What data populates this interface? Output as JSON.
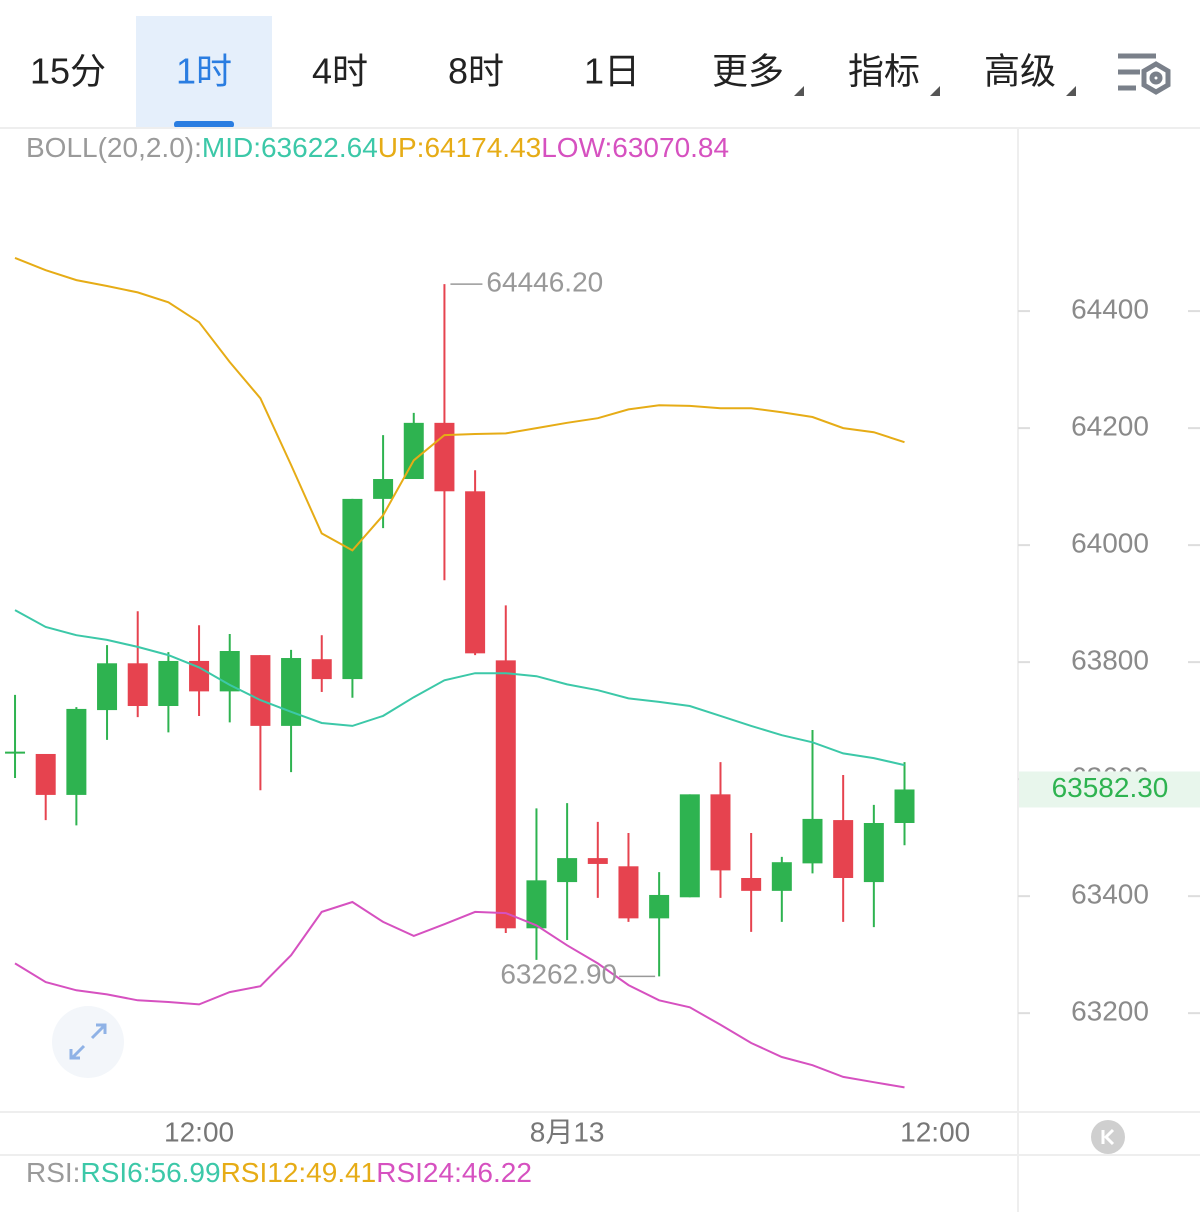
{
  "tabs": [
    {
      "label": "15分",
      "dropdown": false
    },
    {
      "label": "1时",
      "dropdown": false
    },
    {
      "label": "4时",
      "dropdown": false
    },
    {
      "label": "8时",
      "dropdown": false
    },
    {
      "label": "1日",
      "dropdown": false
    },
    {
      "label": "更多",
      "dropdown": true
    },
    {
      "label": "指标",
      "dropdown": true
    },
    {
      "label": "高级",
      "dropdown": true
    }
  ],
  "selected_tab": 1,
  "chart_data": {
    "type": "candlestick",
    "indicator_header": [
      {
        "text": "BOLL(20,2.0):",
        "color": "#9a9a9a"
      },
      {
        "text": "MID:63622.64",
        "color": "#3cc8a8"
      },
      {
        "text": "UP:64174.43",
        "color": "#e6ac16"
      },
      {
        "text": "LOW:63070.84",
        "color": "#d651c0"
      }
    ],
    "open": [
      63644,
      63643,
      63573,
      63718,
      63798,
      63725,
      63802,
      63750,
      63812,
      63691,
      63805,
      63771,
      64079,
      64113,
      64209,
      64092,
      63803,
      63345,
      63424,
      63465,
      63451,
      63362,
      63398,
      63574,
      63431,
      63409,
      63456,
      63530,
      63424,
      63525
    ],
    "high": [
      63744,
      63643,
      63723,
      63829,
      63887,
      63817,
      63863,
      63848,
      63812,
      63821,
      63846,
      64079,
      64188,
      64226,
      64446.2,
      64128,
      63897,
      63550,
      63559,
      63527,
      63508,
      63441,
      63574,
      63629,
      63508,
      63467,
      63684,
      63607,
      63556,
      63629
    ],
    "low": [
      63602,
      63530,
      63521,
      63667,
      63706,
      63680,
      63708,
      63697,
      63581,
      63612,
      63749,
      63739,
      64029,
      64113,
      63940,
      63812,
      63337,
      63291,
      63325,
      63397,
      63356,
      63262.9,
      63398,
      63397,
      63339,
      63356,
      63439,
      63356,
      63347,
      63487
    ],
    "close": [
      63647,
      63573,
      63720,
      63798,
      63725,
      63802,
      63750,
      63819,
      63691,
      63807,
      63771,
      64079,
      64113,
      64209,
      64092,
      63815,
      63345,
      63427,
      63465,
      63455,
      63362,
      63402,
      63574,
      63444,
      63409,
      63458,
      63532,
      63431,
      63525,
      63582.3
    ],
    "up_color": "#2eb350",
    "down_color": "#e6434f",
    "bands": [
      {
        "color": "#e6ac16",
        "values": [
          64491,
          64470,
          64453,
          64443,
          64432,
          64415,
          64381,
          64313,
          64251,
          64137,
          64020,
          63991,
          64051,
          64145,
          64188,
          64190,
          64191,
          64200,
          64209,
          64217,
          64232,
          64239,
          64238,
          64234,
          64234,
          64227,
          64219,
          64200,
          64193,
          64176
        ]
      },
      {
        "color": "#3cc8a8",
        "values": [
          63889,
          63860,
          63846,
          63838,
          63826,
          63812,
          63791,
          63761,
          63735,
          63715,
          63696,
          63691,
          63708,
          63740,
          63769,
          63781,
          63781,
          63776,
          63762,
          63752,
          63738,
          63732,
          63725,
          63708,
          63691,
          63675,
          63663,
          63644,
          63636,
          63624
        ]
      },
      {
        "color": "#d651c0",
        "values": [
          63285,
          63253,
          63239,
          63232,
          63222,
          63219,
          63215,
          63236,
          63246,
          63299,
          63373,
          63390,
          63356,
          63332,
          63352,
          63373,
          63371,
          63350,
          63316,
          63285,
          63248,
          63222,
          63210,
          63180,
          63149,
          63125,
          63111,
          63091,
          63082,
          63073
        ]
      }
    ],
    "high_annotation": {
      "value": 64446.2,
      "label": "64446.20"
    },
    "low_annotation": {
      "value": 63262.9,
      "label": "63262.90"
    },
    "last_price": {
      "value": 63582.3,
      "label": "63582.30"
    },
    "ylim": [
      63031,
      64713
    ],
    "yticks": [
      63200,
      63400,
      63600,
      63800,
      64000,
      64200,
      64400
    ],
    "xlim": [
      -0.49,
      32.7
    ],
    "xticks": [
      {
        "value": 6,
        "label": "12:00"
      },
      {
        "value": 18,
        "label": "8月13"
      },
      {
        "value": 30,
        "label": "12:00"
      }
    ],
    "grid": false,
    "footer_header": [
      {
        "text": "RSI:",
        "color": "#9a9a9a"
      },
      {
        "text": "RSI6:56.99",
        "color": "#3cc8a8"
      },
      {
        "text": "RSI12:49.41",
        "color": "#e6ac16"
      },
      {
        "text": "RSI24:46.22",
        "color": "#d651c0"
      }
    ]
  }
}
